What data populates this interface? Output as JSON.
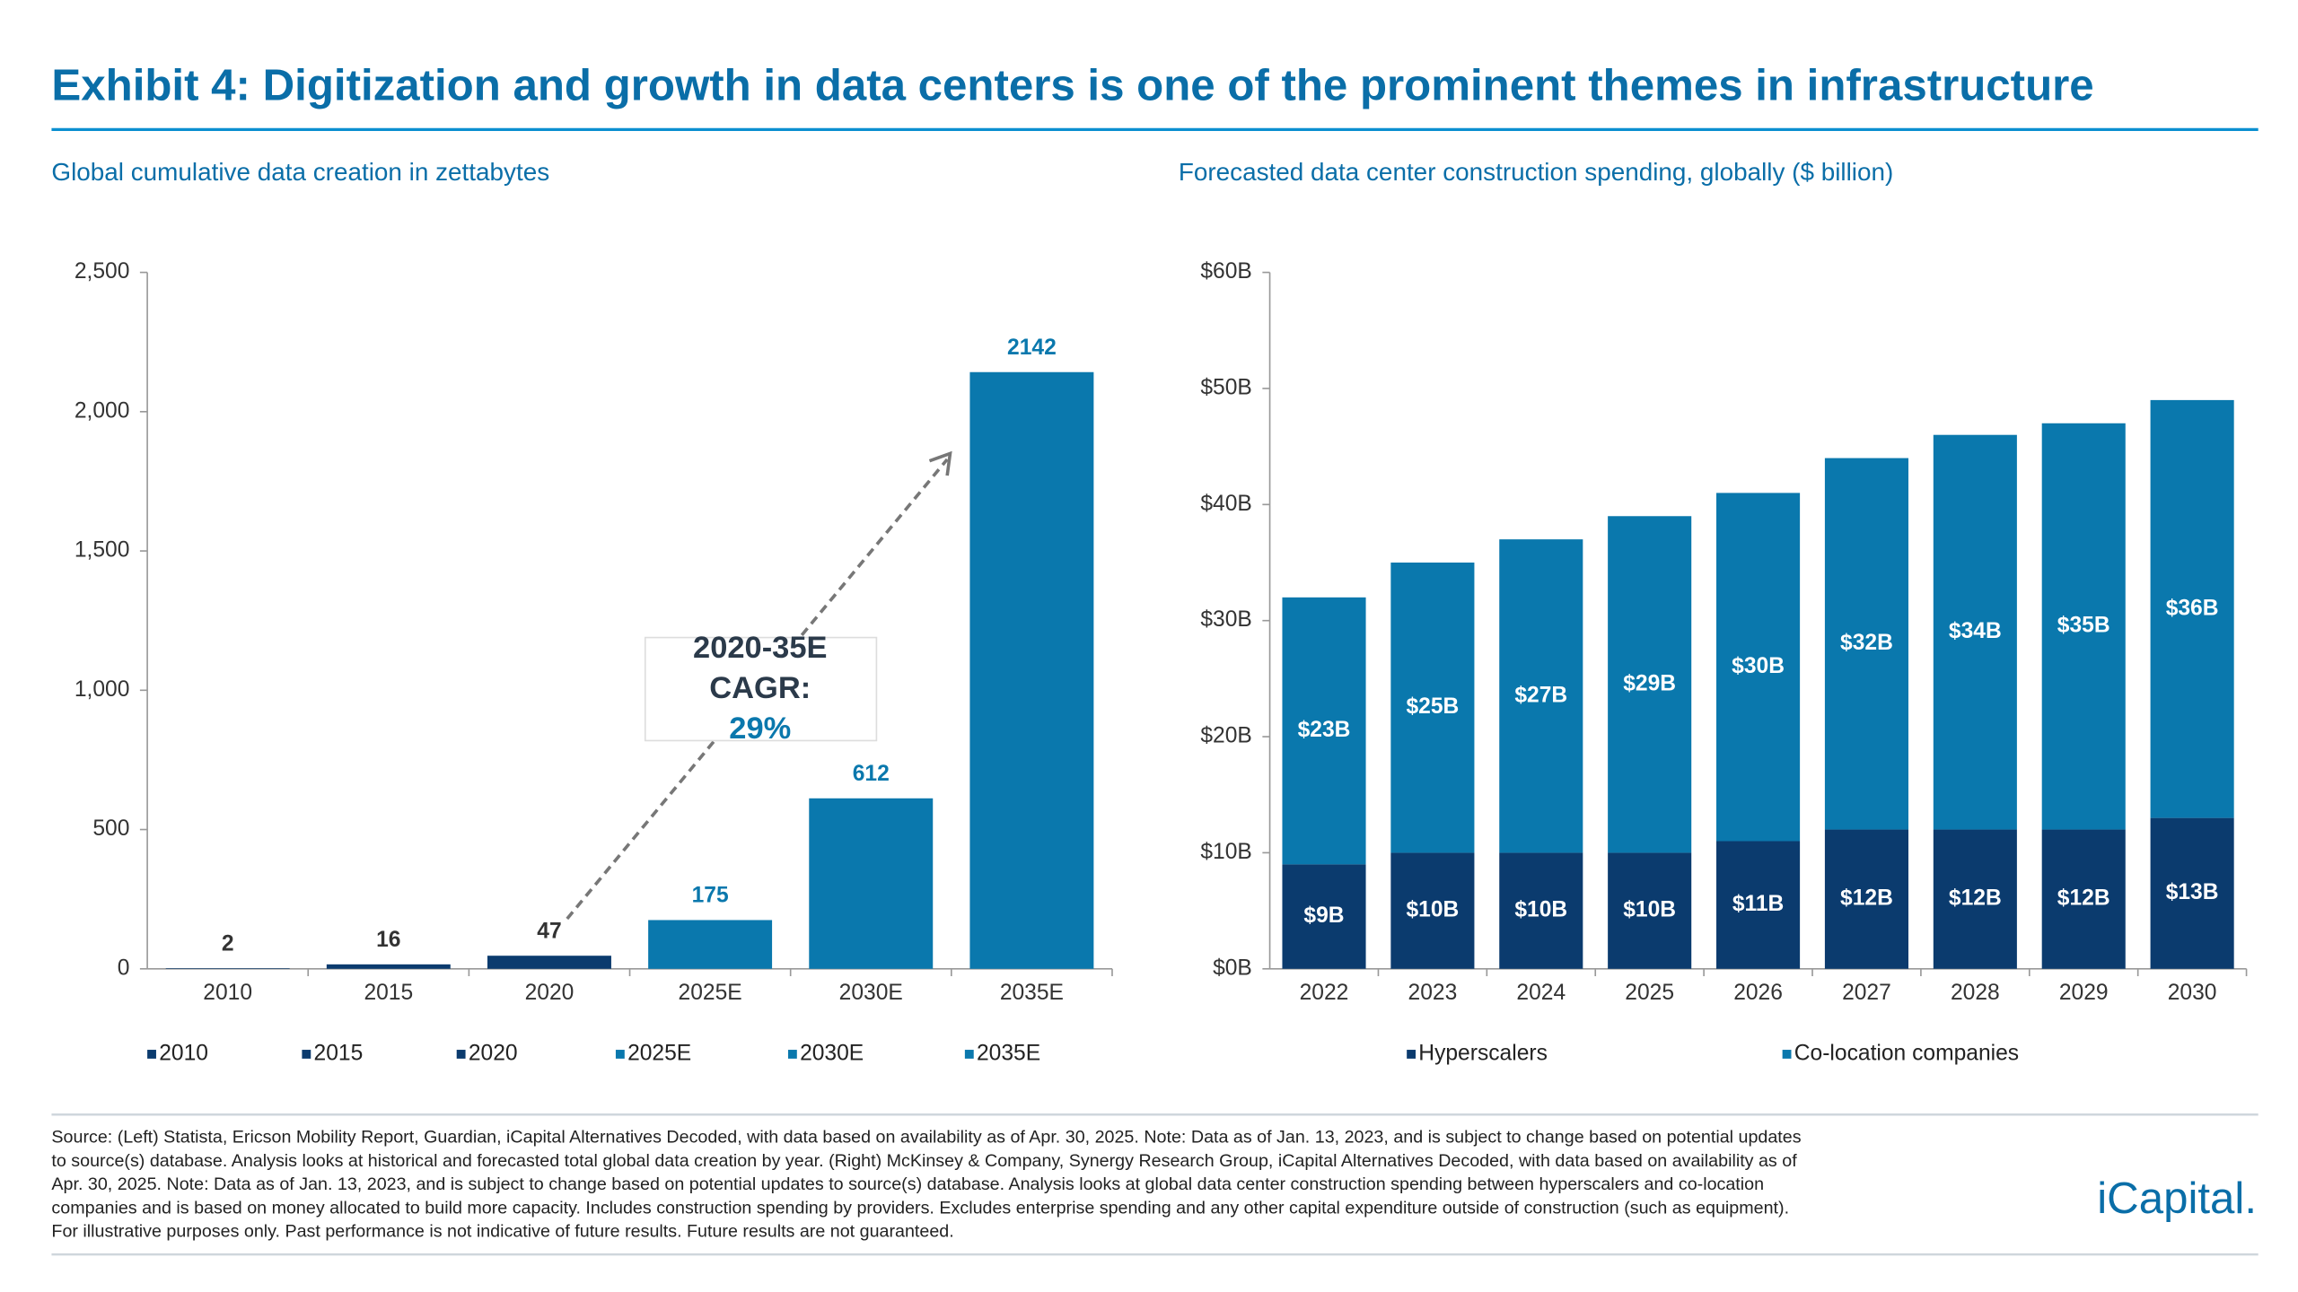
{
  "title": "Exhibit 4: Digitization and growth in data centers is one of the prominent themes in infrastructure",
  "chart_data": [
    {
      "type": "bar",
      "title": "Global cumulative data creation in zettabytes",
      "categories": [
        "2010",
        "2015",
        "2020",
        "2025E",
        "2030E",
        "2035E"
      ],
      "values": [
        2,
        16,
        47,
        175,
        612,
        2142
      ],
      "colors": [
        "#0b3b6e",
        "#0b3b6e",
        "#0b3b6e",
        "#0a78ad",
        "#0a78ad",
        "#0a78ad"
      ],
      "ylim": [
        0,
        2500
      ],
      "yticks": [
        0,
        500,
        {
          "value": 1000,
          "label": "1,000"
        },
        {
          "value": 1500,
          "label": "1,500"
        },
        {
          "value": 2000,
          "label": "2,000"
        },
        {
          "value": 2500,
          "label": "2,500"
        }
      ],
      "annotation": [
        "2020-35E",
        "CAGR:",
        "29%"
      ],
      "legend": true
    },
    {
      "type": "stacked_bar",
      "title": "Forecasted data center construction spending, globally ($ billion)",
      "categories": [
        "2022",
        "2023",
        "2024",
        "2025",
        "2026",
        "2027",
        "2028",
        "2029",
        "2030"
      ],
      "series": [
        {
          "name": "Hyperscalers",
          "color": "#0b3b6e",
          "values": [
            9,
            10,
            10,
            10,
            11,
            12,
            12,
            12,
            13
          ],
          "value_labels": [
            "$9B",
            "$10B",
            "$10B",
            "$10B",
            "$11B",
            "$12B",
            "$12B",
            "$12B",
            "$13B"
          ]
        },
        {
          "name": "Co-location companies",
          "color": "#0a78ad",
          "values": [
            23,
            25,
            27,
            29,
            30,
            32,
            34,
            35,
            36
          ],
          "value_labels": [
            "$23B",
            "$25B",
            "$27B",
            "$29B",
            "$30B",
            "$32B",
            "$34B",
            "$35B",
            "$36B"
          ]
        }
      ],
      "ylim": [
        0,
        60
      ],
      "yticks": [
        {
          "value": 0,
          "label": "$0B"
        },
        {
          "value": 10,
          "label": "$10B"
        },
        {
          "value": 20,
          "label": "$20B"
        },
        {
          "value": 30,
          "label": "$30B"
        },
        {
          "value": 40,
          "label": "$40B"
        },
        {
          "value": 50,
          "label": "$50B"
        },
        {
          "value": 60,
          "label": "$60B"
        }
      ],
      "legend": true
    }
  ],
  "source": [
    "Source: (Left) Statista, Ericson Mobility Report, Guardian, iCapital Alternatives Decoded, with data based on availability as of Apr. 30, 2025. Note: Data as of Jan. 13, 2023, and is subject to change based on potential updates",
    "to source(s) database. Analysis looks at historical and forecasted total global data creation by year. (Right) McKinsey & Company, Synergy Research Group, iCapital Alternatives Decoded, with data based on availability as of",
    "Apr. 30, 2025. Note: Data as of Jan. 13, 2023, and is subject to change based on potential updates to source(s) database. Analysis looks at global data center construction spending between hyperscalers and co-location",
    "companies and is based on money allocated to build more capacity. Includes construction spending by providers. Excludes enterprise spending and any other capital expenditure outside of construction (such as equipment).",
    "For illustrative purposes only. Past performance is not indicative of future results. Future results are not guaranteed."
  ],
  "logo": "iCapital."
}
